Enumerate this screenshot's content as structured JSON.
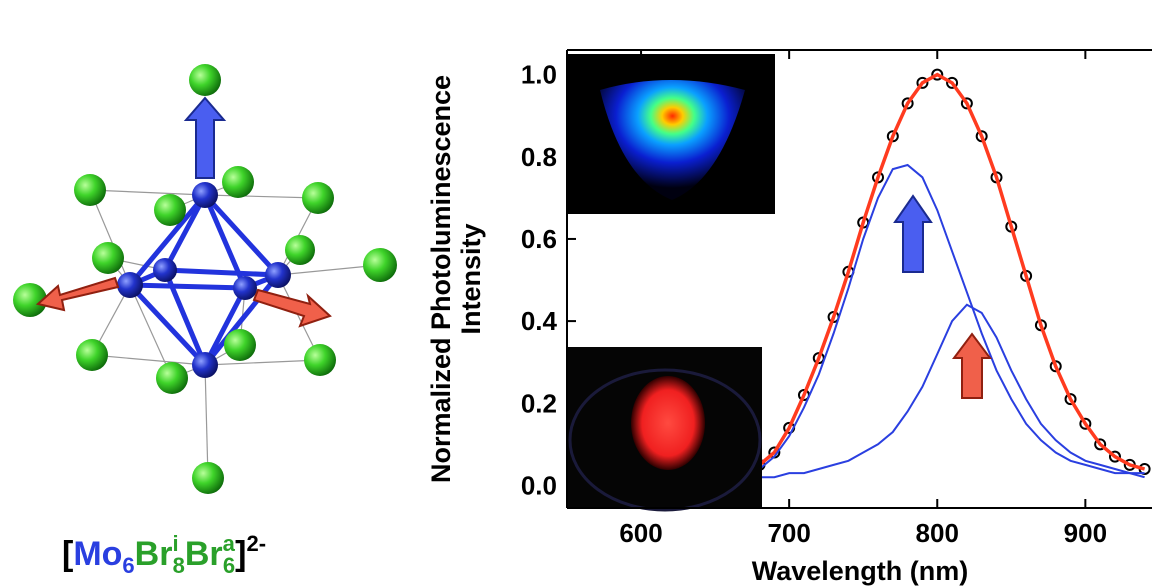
{
  "chart_data": {
    "type": "line",
    "formula": [
      "[",
      "Mo",
      "6",
      "Br",
      "i",
      "8",
      "Br",
      "a",
      "6",
      "]",
      "2-"
    ],
    "ylabel": [
      "Normalized Photoluminescence",
      "Intensity"
    ],
    "xlabel": "Wavelength (nm)",
    "x": [
      680,
      690,
      700,
      710,
      720,
      730,
      740,
      750,
      760,
      770,
      780,
      790,
      800,
      810,
      820,
      830,
      840,
      850,
      860,
      870,
      880,
      890,
      900,
      910,
      920,
      930,
      940
    ],
    "series": [
      {
        "color": "#000000",
        "marker": "circle",
        "values": [
          0.05,
          0.08,
          0.14,
          0.22,
          0.31,
          0.41,
          0.52,
          0.64,
          0.75,
          0.85,
          0.93,
          0.98,
          1.0,
          0.98,
          0.93,
          0.85,
          0.75,
          0.63,
          0.51,
          0.39,
          0.29,
          0.21,
          0.15,
          0.1,
          0.07,
          0.05,
          0.04
        ]
      },
      {
        "color": "#ff3b1f",
        "values": [
          0.05,
          0.08,
          0.14,
          0.22,
          0.31,
          0.41,
          0.52,
          0.64,
          0.75,
          0.85,
          0.93,
          0.98,
          1.0,
          0.98,
          0.93,
          0.85,
          0.75,
          0.63,
          0.51,
          0.39,
          0.29,
          0.21,
          0.15,
          0.1,
          0.07,
          0.05,
          0.04
        ]
      },
      {
        "color": "#2a3fe0",
        "values": [
          0.04,
          0.07,
          0.12,
          0.19,
          0.27,
          0.37,
          0.48,
          0.6,
          0.7,
          0.77,
          0.78,
          0.75,
          0.67,
          0.57,
          0.47,
          0.37,
          0.28,
          0.21,
          0.15,
          0.11,
          0.08,
          0.06,
          0.05,
          0.04,
          0.03,
          0.03,
          0.02
        ]
      },
      {
        "color": "#2a3fe0",
        "values": [
          0.02,
          0.02,
          0.03,
          0.03,
          0.04,
          0.05,
          0.06,
          0.08,
          0.1,
          0.13,
          0.18,
          0.24,
          0.32,
          0.4,
          0.44,
          0.42,
          0.36,
          0.28,
          0.21,
          0.15,
          0.11,
          0.08,
          0.06,
          0.05,
          0.04,
          0.03,
          0.03
        ]
      }
    ],
    "xlim": [
      550,
      945
    ],
    "xticks": [
      600,
      700,
      800,
      900
    ],
    "ylim": [
      -0.055,
      1.06
    ],
    "yticks": [
      {
        "value": 0,
        "label": "0.0"
      },
      0.2,
      0.4,
      0.6,
      0.8,
      {
        "value": 1,
        "label": "1.0"
      }
    ]
  }
}
